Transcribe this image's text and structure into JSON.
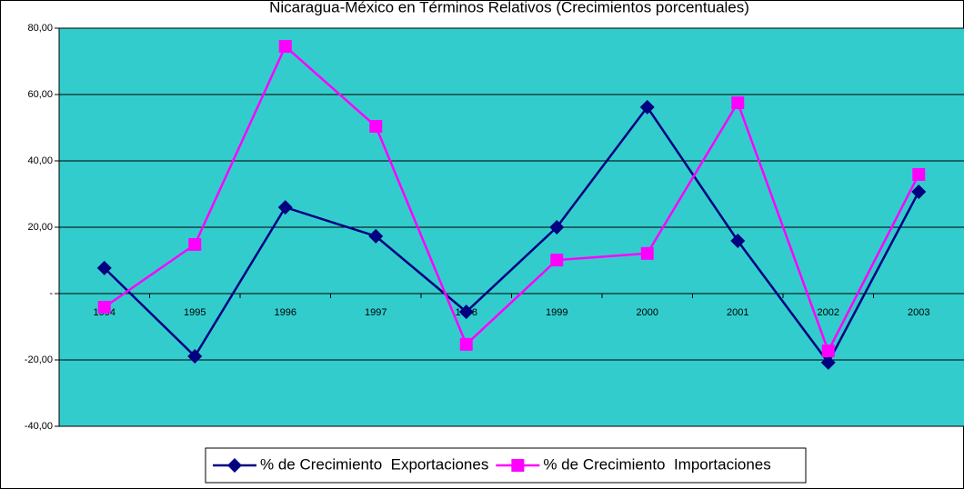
{
  "chart_data": {
    "type": "line",
    "title": "Nicaragua-México en Términos Relativos (Crecimientos porcentuales)",
    "categories": [
      "1994",
      "1995",
      "1996",
      "1997",
      "1998",
      "1999",
      "2000",
      "2001",
      "2002",
      "2003"
    ],
    "series": [
      {
        "name": "% de Crecimiento  Exportaciones",
        "color": "#000080",
        "marker": "diamond",
        "values": [
          7.7,
          -18.9,
          26,
          17.3,
          -5.5,
          20,
          56.2,
          15.9,
          -20.8,
          30.7
        ]
      },
      {
        "name": "% de Crecimiento  Importaciones",
        "color": "#FF00FF",
        "marker": "square",
        "values": [
          -4.1,
          14.8,
          74.5,
          50.4,
          -15.3,
          10.1,
          12.1,
          57.5,
          -17.3,
          35.9
        ]
      }
    ],
    "ylim": [
      -40,
      80
    ],
    "yticks": [
      {
        "value": -40,
        "label": "-40,00"
      },
      {
        "value": -20,
        "label": "-20,00"
      },
      {
        "value": 0,
        "label": "-"
      },
      {
        "value": 20,
        "label": "20,00"
      },
      {
        "value": 40,
        "label": "40,00"
      },
      {
        "value": 60,
        "label": "60,00"
      },
      {
        "value": 80,
        "label": "80,00"
      }
    ],
    "grid": true,
    "plot_background": "#33CCCC",
    "legend": "bottom"
  }
}
